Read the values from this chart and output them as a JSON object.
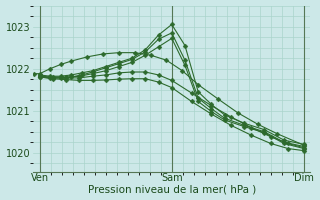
{
  "xlabel": "Pression niveau de la mer( hPa )",
  "bg_color": "#cce8e8",
  "grid_color": "#aad4cc",
  "line_color": "#2d6a2d",
  "marker_color": "#2d6a2d",
  "yticks": [
    1020,
    1021,
    1022,
    1023
  ],
  "ylim": [
    1019.55,
    1023.5
  ],
  "xlim": [
    -0.05,
    2.05
  ],
  "xtick_positions": [
    0.0,
    1.0,
    2.0
  ],
  "xticklabels": [
    "Ven",
    "Sam",
    "Dim"
  ],
  "vlines": [
    0.0,
    1.0,
    2.0
  ],
  "series": [
    {
      "x": [
        0.0,
        0.08,
        0.16,
        0.24,
        0.32,
        0.4,
        0.5,
        0.6,
        0.7,
        0.8,
        0.9,
        1.0,
        1.1,
        1.2,
        1.3,
        1.4,
        1.55,
        1.7,
        1.85,
        2.0
      ],
      "y": [
        1021.85,
        1021.82,
        1021.82,
        1021.85,
        1021.9,
        1021.95,
        1022.05,
        1022.15,
        1022.25,
        1022.45,
        1022.8,
        1023.05,
        1022.55,
        1021.45,
        1021.15,
        1020.9,
        1020.7,
        1020.55,
        1020.3,
        1020.2
      ]
    },
    {
      "x": [
        0.0,
        0.08,
        0.16,
        0.24,
        0.32,
        0.4,
        0.5,
        0.6,
        0.7,
        0.8,
        0.9,
        1.0,
        1.1,
        1.2,
        1.3,
        1.4,
        1.55,
        1.7,
        1.85,
        2.0
      ],
      "y": [
        1021.8,
        1021.78,
        1021.78,
        1021.8,
        1021.85,
        1021.92,
        1022.02,
        1022.12,
        1022.22,
        1022.4,
        1022.7,
        1022.85,
        1022.2,
        1021.3,
        1021.05,
        1020.82,
        1020.65,
        1020.5,
        1020.25,
        1020.15
      ]
    },
    {
      "x": [
        0.0,
        0.1,
        0.2,
        0.3,
        0.4,
        0.5,
        0.6,
        0.7,
        0.8,
        0.9,
        1.0,
        1.1,
        1.2,
        1.3,
        1.4,
        1.55,
        1.7,
        1.85,
        2.0
      ],
      "y": [
        1021.82,
        1021.8,
        1021.8,
        1021.82,
        1021.88,
        1021.95,
        1022.05,
        1022.15,
        1022.32,
        1022.52,
        1022.72,
        1022.08,
        1021.22,
        1020.98,
        1020.78,
        1020.62,
        1020.48,
        1020.22,
        1020.1
      ]
    },
    {
      "x": [
        0.0,
        0.1,
        0.2,
        0.3,
        0.4,
        0.5,
        0.6,
        0.7,
        0.8,
        0.9,
        1.0,
        1.15,
        1.3,
        1.45,
        1.6,
        1.75,
        1.88,
        2.0
      ],
      "y": [
        1021.8,
        1021.78,
        1021.78,
        1021.78,
        1021.82,
        1021.85,
        1021.9,
        1021.92,
        1021.92,
        1021.85,
        1021.72,
        1021.42,
        1021.12,
        1020.85,
        1020.6,
        1020.38,
        1020.22,
        1020.12
      ]
    },
    {
      "x": [
        0.0,
        0.1,
        0.2,
        0.3,
        0.4,
        0.5,
        0.6,
        0.7,
        0.8,
        0.9,
        1.0,
        1.15,
        1.3,
        1.45,
        1.6,
        1.75,
        1.88,
        2.0
      ],
      "y": [
        1021.8,
        1021.76,
        1021.74,
        1021.72,
        1021.72,
        1021.73,
        1021.75,
        1021.76,
        1021.76,
        1021.68,
        1021.55,
        1021.22,
        1020.92,
        1020.65,
        1020.42,
        1020.22,
        1020.1,
        1020.05
      ]
    },
    {
      "x": [
        -0.04,
        0.0,
        0.08,
        0.16,
        0.24,
        0.36,
        0.48,
        0.6,
        0.72,
        0.84,
        0.96,
        1.08,
        1.2,
        1.35,
        1.5,
        1.65,
        1.8,
        2.0
      ],
      "y": [
        1021.88,
        1021.88,
        1022.0,
        1022.1,
        1022.18,
        1022.28,
        1022.35,
        1022.38,
        1022.38,
        1022.32,
        1022.2,
        1021.95,
        1021.62,
        1021.28,
        1020.95,
        1020.68,
        1020.45,
        1020.18
      ]
    }
  ]
}
